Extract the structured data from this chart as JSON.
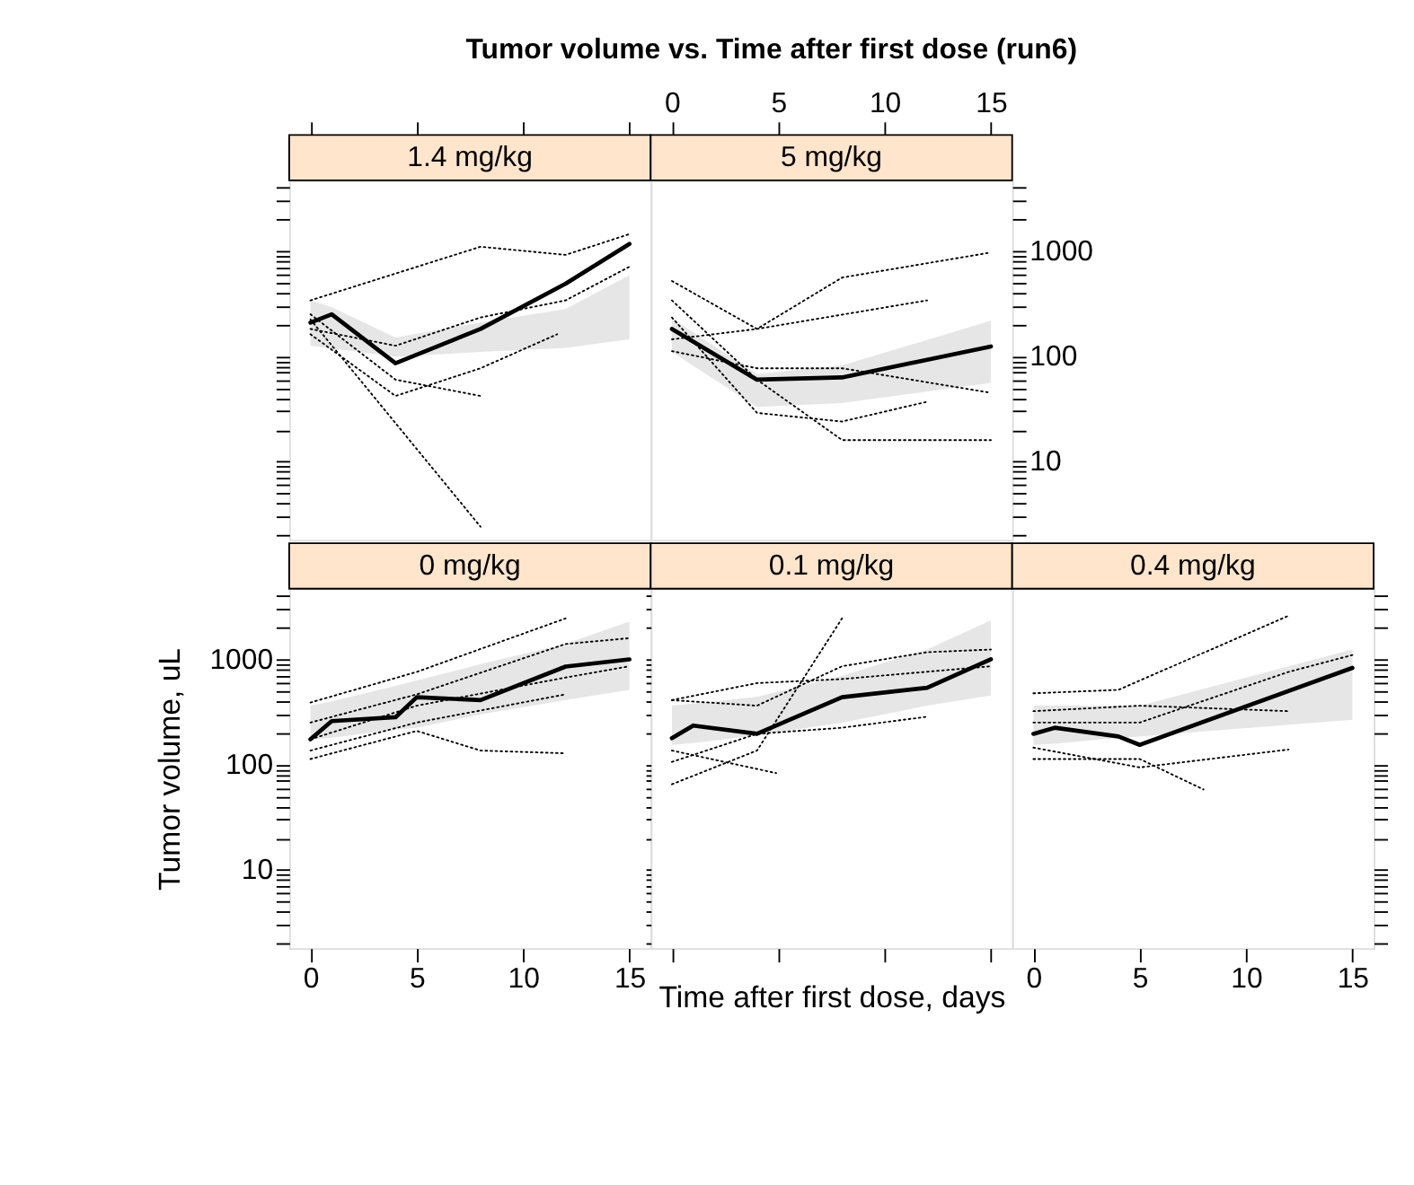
{
  "chart_data": [
    {
      "type": "line",
      "title": "1.4 mg/kg",
      "annotations": [
        "Tumor volume vs. Time after first dose (run6)"
      ],
      "log": true,
      "xlim": [
        -1,
        16
      ],
      "ylim": [
        1.8,
        4700
      ],
      "xticks": [
        0,
        5,
        10,
        15
      ],
      "yticks": [
        {
          "value": 2,
          "label": null
        },
        {
          "value": 3,
          "label": null
        },
        {
          "value": 4,
          "label": null
        },
        {
          "value": 5,
          "label": null
        },
        {
          "value": 6,
          "label": null
        },
        {
          "value": 7,
          "label": null
        },
        {
          "value": 8,
          "label": null
        },
        {
          "value": 9,
          "label": null
        },
        10,
        {
          "value": 20,
          "label": null
        },
        {
          "value": 30,
          "label": null
        },
        {
          "value": 40,
          "label": null
        },
        {
          "value": 50,
          "label": null
        },
        {
          "value": 60,
          "label": null
        },
        {
          "value": 70,
          "label": null
        },
        {
          "value": 80,
          "label": null
        },
        {
          "value": 90,
          "label": null
        },
        100,
        {
          "value": 200,
          "label": null
        },
        {
          "value": 300,
          "label": null
        },
        {
          "value": 400,
          "label": null
        },
        {
          "value": 500,
          "label": null
        },
        {
          "value": 600,
          "label": null
        },
        {
          "value": 700,
          "label": null
        },
        {
          "value": 800,
          "label": null
        },
        {
          "value": 900,
          "label": null
        },
        1000,
        {
          "value": 2000,
          "label": null
        },
        {
          "value": 3000,
          "label": null
        },
        {
          "value": 4000,
          "label": null
        }
      ],
      "tick_labels": false,
      "series": [
        {
          "type": "line",
          "color": "#000000",
          "line_style": "dotted",
          "x": [
            0,
            8
          ],
          "values": [
            224,
            2.4
          ]
        },
        {
          "type": "line",
          "color": "#000000",
          "line_style": "dotted",
          "x": [
            0,
            8,
            12,
            15
          ],
          "values": [
            340,
            1100,
            920,
            1450
          ]
        },
        {
          "type": "line",
          "color": "#000000",
          "line_style": "dotted",
          "x": [
            0,
            4,
            8
          ],
          "values": [
            251,
            60,
            42
          ]
        },
        {
          "type": "line",
          "color": "#000000",
          "line_style": "dotted",
          "x": [
            0,
            4,
            8,
            12,
            15
          ],
          "values": [
            182,
            126,
            234,
            340,
            710
          ]
        },
        {
          "type": "line",
          "color": "#000000",
          "line_style": "dotted",
          "x": [
            0,
            4,
            8,
            11.6
          ],
          "values": [
            162,
            42,
            77,
            162
          ]
        },
        {
          "type": "line",
          "color": "#000000",
          "line_style": "solid",
          "x": [
            0,
            1,
            4,
            8,
            12,
            15
          ],
          "values": [
            209,
            251,
            86,
            182,
            490,
            1170
          ],
          "lower": [
            126,
            119,
            99,
            110,
            120,
            145
          ],
          "upper": [
            340,
            292,
            151,
            210,
            282,
            590
          ]
        }
      ]
    },
    {
      "type": "line",
      "title": "5 mg/kg",
      "log": true,
      "xlim": [
        -1,
        16
      ],
      "ylim": [
        1.8,
        4700
      ],
      "xticks": [
        0,
        5,
        10,
        15
      ],
      "yticks": [
        {
          "value": 2,
          "label": null
        },
        {
          "value": 3,
          "label": null
        },
        {
          "value": 4,
          "label": null
        },
        {
          "value": 5,
          "label": null
        },
        {
          "value": 6,
          "label": null
        },
        {
          "value": 7,
          "label": null
        },
        {
          "value": 8,
          "label": null
        },
        {
          "value": 9,
          "label": null
        },
        10,
        {
          "value": 20,
          "label": null
        },
        {
          "value": 30,
          "label": null
        },
        {
          "value": 40,
          "label": null
        },
        {
          "value": 50,
          "label": null
        },
        {
          "value": 60,
          "label": null
        },
        {
          "value": 70,
          "label": null
        },
        {
          "value": 80,
          "label": null
        },
        {
          "value": 90,
          "label": null
        },
        100,
        {
          "value": 200,
          "label": null
        },
        {
          "value": 300,
          "label": null
        },
        {
          "value": 400,
          "label": null
        },
        {
          "value": 500,
          "label": null
        },
        {
          "value": 600,
          "label": null
        },
        {
          "value": 700,
          "label": null
        },
        {
          "value": 800,
          "label": null
        },
        {
          "value": 900,
          "label": null
        },
        1000,
        {
          "value": 2000,
          "label": null
        },
        {
          "value": 3000,
          "label": null
        },
        {
          "value": 4000,
          "label": null
        }
      ],
      "series": [
        {
          "type": "line",
          "color": "#000000",
          "line_style": "dotted",
          "x": [
            0,
            4,
            8,
            15
          ],
          "values": [
            520,
            182,
            560,
            970
          ]
        },
        {
          "type": "line",
          "color": "#000000",
          "line_style": "dotted",
          "x": [
            0,
            4,
            8,
            15
          ],
          "values": [
            340,
            60,
            16,
            16
          ]
        },
        {
          "type": "line",
          "color": "#000000",
          "line_style": "dotted",
          "x": [
            0,
            4,
            8,
            12
          ],
          "values": [
            234,
            29,
            24,
            37
          ]
        },
        {
          "type": "line",
          "color": "#000000",
          "line_style": "dotted",
          "x": [
            0,
            4,
            12
          ],
          "values": [
            145,
            182,
            340
          ]
        },
        {
          "type": "line",
          "color": "#000000",
          "line_style": "dotted",
          "x": [
            0,
            4,
            8,
            15
          ],
          "values": [
            112,
            77,
            77,
            45
          ]
        },
        {
          "type": "line",
          "color": "#000000",
          "line_style": "solid",
          "x": [
            0,
            4,
            8,
            15
          ],
          "values": [
            182,
            60,
            63,
            124
          ],
          "lower": [
            110,
            33,
            36,
            56
          ],
          "upper": [
            230,
            68,
            82,
            218
          ]
        }
      ]
    },
    {
      "type": "line",
      "title": "0 mg/kg",
      "ylabel": "Tumor volume, uL",
      "log": true,
      "xlim": [
        -1,
        16
      ],
      "ylim": [
        1.8,
        4700
      ],
      "xticks": [
        0,
        5,
        10,
        15
      ],
      "yticks": [
        {
          "value": 2,
          "label": null
        },
        {
          "value": 3,
          "label": null
        },
        {
          "value": 4,
          "label": null
        },
        {
          "value": 5,
          "label": null
        },
        {
          "value": 6,
          "label": null
        },
        {
          "value": 7,
          "label": null
        },
        {
          "value": 8,
          "label": null
        },
        {
          "value": 9,
          "label": null
        },
        10,
        {
          "value": 20,
          "label": null
        },
        {
          "value": 30,
          "label": null
        },
        {
          "value": 40,
          "label": null
        },
        {
          "value": 50,
          "label": null
        },
        {
          "value": 60,
          "label": null
        },
        {
          "value": 70,
          "label": null
        },
        {
          "value": 80,
          "label": null
        },
        {
          "value": 90,
          "label": null
        },
        100,
        {
          "value": 200,
          "label": null
        },
        {
          "value": 300,
          "label": null
        },
        {
          "value": 400,
          "label": null
        },
        {
          "value": 500,
          "label": null
        },
        {
          "value": 600,
          "label": null
        },
        {
          "value": 700,
          "label": null
        },
        {
          "value": 800,
          "label": null
        },
        {
          "value": 900,
          "label": null
        },
        1000,
        {
          "value": 2000,
          "label": null
        },
        {
          "value": 3000,
          "label": null
        },
        {
          "value": 4000,
          "label": null
        }
      ],
      "series": [
        {
          "type": "line",
          "color": "#000000",
          "line_style": "dotted",
          "x": [
            0,
            5,
            12
          ],
          "values": [
            389,
            760,
            2450
          ]
        },
        {
          "type": "line",
          "color": "#000000",
          "line_style": "dotted",
          "x": [
            0,
            5,
            8,
            12
          ],
          "values": [
            113,
            209,
            136,
            128
          ]
        },
        {
          "type": "line",
          "color": "#000000",
          "line_style": "dotted",
          "x": [
            0,
            5,
            12,
            15
          ],
          "values": [
            251,
            465,
            1400,
            1590
          ]
        },
        {
          "type": "line",
          "color": "#000000",
          "line_style": "dotted",
          "x": [
            0,
            5,
            12,
            15
          ],
          "values": [
            174,
            363,
            672,
            860
          ]
        },
        {
          "type": "line",
          "color": "#000000",
          "line_style": "dotted",
          "x": [
            0,
            5,
            12
          ],
          "values": [
            136,
            251,
            465
          ]
        },
        {
          "type": "line",
          "color": "#000000",
          "line_style": "solid",
          "x": [
            0,
            1,
            4,
            5,
            8,
            12,
            15
          ],
          "values": [
            174,
            259,
            282,
            437,
            410,
            855,
            1000
          ],
          "lower": [
            174,
            180,
            215,
            224,
            300,
            410,
            513
          ],
          "upper": [
            363,
            400,
            560,
            631,
            900,
            1400,
            2290
          ]
        }
      ]
    },
    {
      "type": "line",
      "title": "0.1 mg/kg",
      "xlabel": "Time after first dose, days",
      "log": true,
      "xlim": [
        -1,
        16
      ],
      "ylim": [
        1.8,
        4700
      ],
      "xticks": [
        0,
        5,
        10,
        15
      ],
      "yticks": [
        {
          "value": 2,
          "label": null
        },
        {
          "value": 3,
          "label": null
        },
        {
          "value": 4,
          "label": null
        },
        {
          "value": 5,
          "label": null
        },
        {
          "value": 6,
          "label": null
        },
        {
          "value": 7,
          "label": null
        },
        {
          "value": 8,
          "label": null
        },
        {
          "value": 9,
          "label": null
        },
        10,
        {
          "value": 20,
          "label": null
        },
        {
          "value": 30,
          "label": null
        },
        {
          "value": 40,
          "label": null
        },
        {
          "value": 50,
          "label": null
        },
        {
          "value": 60,
          "label": null
        },
        {
          "value": 70,
          "label": null
        },
        {
          "value": 80,
          "label": null
        },
        {
          "value": 90,
          "label": null
        },
        100,
        {
          "value": 200,
          "label": null
        },
        {
          "value": 300,
          "label": null
        },
        {
          "value": 400,
          "label": null
        },
        {
          "value": 500,
          "label": null
        },
        {
          "value": 600,
          "label": null
        },
        {
          "value": 700,
          "label": null
        },
        {
          "value": 800,
          "label": null
        },
        {
          "value": 900,
          "label": null
        },
        1000,
        {
          "value": 2000,
          "label": null
        },
        {
          "value": 3000,
          "label": null
        },
        {
          "value": 4000,
          "label": null
        }
      ],
      "tick_labels": false,
      "series": [
        {
          "type": "line",
          "color": "#000000",
          "line_style": "dotted",
          "x": [
            0,
            4,
            8
          ],
          "values": [
            65,
            136,
            2450
          ]
        },
        {
          "type": "line",
          "color": "#000000",
          "line_style": "dotted",
          "x": [
            0,
            4,
            8,
            12,
            15
          ],
          "values": [
            410,
            363,
            860,
            1170,
            1240
          ]
        },
        {
          "type": "line",
          "color": "#000000",
          "line_style": "dotted",
          "x": [
            0,
            4,
            8,
            12
          ],
          "values": [
            106,
            196,
            224,
            285
          ]
        },
        {
          "type": "line",
          "color": "#000000",
          "line_style": "dotted",
          "x": [
            0,
            4.9
          ],
          "values": [
            136,
            83
          ]
        },
        {
          "type": "line",
          "color": "#000000",
          "line_style": "dotted",
          "x": [
            0,
            4,
            8,
            15
          ],
          "values": [
            410,
            595,
            650,
            860
          ]
        },
        {
          "type": "line",
          "color": "#000000",
          "line_style": "solid",
          "x": [
            0,
            1,
            4,
            8,
            12,
            15
          ],
          "values": [
            178,
            235,
            196,
            437,
            537,
            1000
          ],
          "lower": [
            154,
            160,
            190,
            250,
            363,
            454
          ],
          "upper": [
            363,
            380,
            440,
            700,
            1240,
            2350
          ]
        }
      ]
    },
    {
      "type": "line",
      "title": "0.4 mg/kg",
      "log": true,
      "xlim": [
        -1,
        16
      ],
      "ylim": [
        1.8,
        4700
      ],
      "xticks": [
        0,
        5,
        10,
        15
      ],
      "yticks": [
        {
          "value": 2,
          "label": null
        },
        {
          "value": 3,
          "label": null
        },
        {
          "value": 4,
          "label": null
        },
        {
          "value": 5,
          "label": null
        },
        {
          "value": 6,
          "label": null
        },
        {
          "value": 7,
          "label": null
        },
        {
          "value": 8,
          "label": null
        },
        {
          "value": 9,
          "label": null
        },
        10,
        {
          "value": 20,
          "label": null
        },
        {
          "value": 30,
          "label": null
        },
        {
          "value": 40,
          "label": null
        },
        {
          "value": 50,
          "label": null
        },
        {
          "value": 60,
          "label": null
        },
        {
          "value": 70,
          "label": null
        },
        {
          "value": 80,
          "label": null
        },
        {
          "value": 90,
          "label": null
        },
        100,
        {
          "value": 200,
          "label": null
        },
        {
          "value": 300,
          "label": null
        },
        {
          "value": 400,
          "label": null
        },
        {
          "value": 500,
          "label": null
        },
        {
          "value": 600,
          "label": null
        },
        {
          "value": 700,
          "label": null
        },
        {
          "value": 800,
          "label": null
        },
        {
          "value": 900,
          "label": null
        },
        1000,
        {
          "value": 2000,
          "label": null
        },
        {
          "value": 3000,
          "label": null
        },
        {
          "value": 4000,
          "label": null
        }
      ],
      "tick_labels": "x",
      "series": [
        {
          "type": "line",
          "color": "#000000",
          "line_style": "dotted",
          "x": [
            0,
            4,
            12
          ],
          "values": [
            476,
            513,
            2600
          ]
        },
        {
          "type": "line",
          "color": "#000000",
          "line_style": "dotted",
          "x": [
            0,
            5,
            8
          ],
          "values": [
            113,
            113,
            58
          ]
        },
        {
          "type": "line",
          "color": "#000000",
          "line_style": "dotted",
          "x": [
            0,
            5,
            12,
            15
          ],
          "values": [
            251,
            251,
            760,
            1100
          ]
        },
        {
          "type": "line",
          "color": "#000000",
          "line_style": "dotted",
          "x": [
            0,
            5,
            12
          ],
          "values": [
            145,
            94,
            139
          ]
        },
        {
          "type": "line",
          "color": "#000000",
          "line_style": "dotted",
          "x": [
            0,
            5,
            12
          ],
          "values": [
            322,
            363,
            322
          ]
        },
        {
          "type": "line",
          "color": "#000000",
          "line_style": "solid",
          "x": [
            0,
            1,
            4,
            5,
            15
          ],
          "values": [
            196,
            224,
            185,
            154,
            830
          ],
          "lower": [
            154,
            158,
            180,
            185,
            267
          ],
          "upper": [
            363,
            363,
            363,
            363,
            1240
          ]
        }
      ]
    }
  ]
}
